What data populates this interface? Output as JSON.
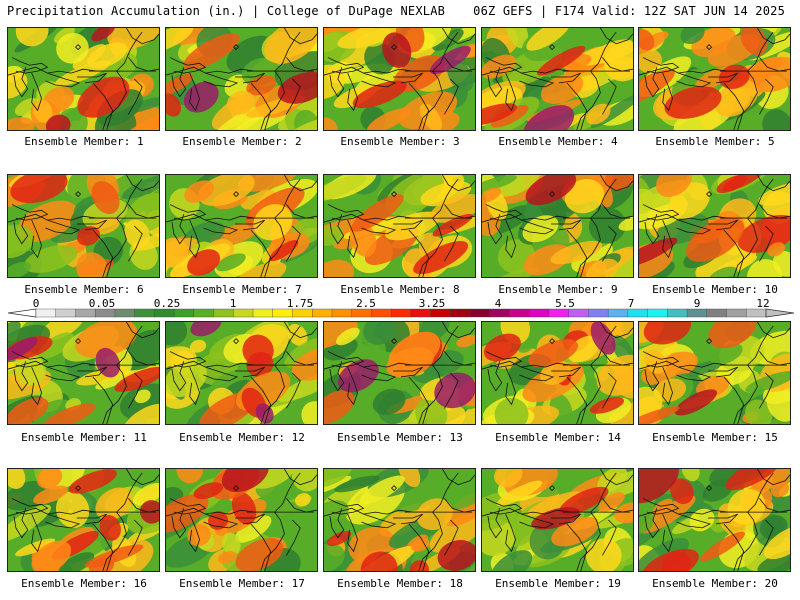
{
  "header": {
    "title_left": "Precipitation Accumulation (in.) | College of DuPage NEXLAB",
    "title_right": "06Z GEFS | F174 Valid: 12Z SAT JUN 14 2025"
  },
  "panels": [
    {
      "label": "Ensemble Member: 1"
    },
    {
      "label": "Ensemble Member: 2"
    },
    {
      "label": "Ensemble Member: 3"
    },
    {
      "label": "Ensemble Member: 4"
    },
    {
      "label": "Ensemble Member: 5"
    },
    {
      "label": "Ensemble Member: 6"
    },
    {
      "label": "Ensemble Member: 7"
    },
    {
      "label": "Ensemble Member: 8"
    },
    {
      "label": "Ensemble Member: 9"
    },
    {
      "label": "Ensemble Member: 10"
    },
    {
      "label": "Ensemble Member: 11"
    },
    {
      "label": "Ensemble Member: 12"
    },
    {
      "label": "Ensemble Member: 13"
    },
    {
      "label": "Ensemble Member: 14"
    },
    {
      "label": "Ensemble Member: 15"
    },
    {
      "label": "Ensemble Member: 16"
    },
    {
      "label": "Ensemble Member: 17"
    },
    {
      "label": "Ensemble Member: 18"
    },
    {
      "label": "Ensemble Member: 19"
    },
    {
      "label": "Ensemble Member: 20"
    }
  ],
  "colorbar": {
    "labels": [
      "0",
      "0.05",
      "0.25",
      "1",
      "1.75",
      "2.5",
      "3.25",
      "4",
      "5.5",
      "7",
      "9",
      "12"
    ],
    "colors": [
      "#f0f0f0",
      "#cfcfcf",
      "#a8a8a8",
      "#8c8c8c",
      "#6e8c6e",
      "#3f8f3f",
      "#2e8b2e",
      "#3aa02a",
      "#5ab020",
      "#8ec21e",
      "#c8d81e",
      "#f0f01e",
      "#fff000",
      "#ffd000",
      "#ffb000",
      "#ff9000",
      "#ff7000",
      "#ff5000",
      "#ff2a00",
      "#e81010",
      "#c80000",
      "#a00010",
      "#880030",
      "#a00060",
      "#c80090",
      "#e000c0",
      "#f020f0",
      "#c060f0",
      "#8080f0",
      "#60b0f0",
      "#20e0f0",
      "#20f0f0",
      "#40c0c0",
      "#609090",
      "#808080",
      "#a0a0a0",
      "#c0c0c0"
    ],
    "field_palette": [
      "#3a8e3a",
      "#2f7f2f",
      "#58ad28",
      "#8cc21e",
      "#c6d820",
      "#f2ee22",
      "#ffd81c",
      "#ffb81a",
      "#ff8a16",
      "#f05a14",
      "#e02414",
      "#b8141e",
      "#9a1c6a",
      "#808080"
    ]
  }
}
